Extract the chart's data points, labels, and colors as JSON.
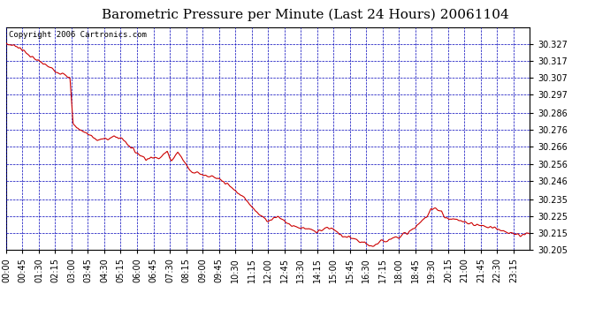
{
  "title": "Barometric Pressure per Minute (Last 24 Hours) 20061104",
  "copyright": "Copyright 2006 Cartronics.com",
  "background_color": "#ffffff",
  "plot_bg_color": "#ffffff",
  "line_color": "#cc0000",
  "grid_color": "#0000bb",
  "y_min": 30.205,
  "y_max": 30.337,
  "y_ticks": [
    30.205,
    30.215,
    30.225,
    30.235,
    30.246,
    30.256,
    30.266,
    30.276,
    30.286,
    30.297,
    30.307,
    30.317,
    30.327
  ],
  "x_tick_labels": [
    "00:00",
    "00:45",
    "01:30",
    "02:15",
    "03:00",
    "03:45",
    "04:30",
    "05:15",
    "06:00",
    "06:45",
    "07:30",
    "08:15",
    "09:00",
    "09:45",
    "10:30",
    "11:15",
    "12:00",
    "12:45",
    "13:30",
    "14:15",
    "15:00",
    "15:45",
    "16:30",
    "17:15",
    "18:00",
    "18:45",
    "19:30",
    "20:15",
    "21:00",
    "21:45",
    "22:30",
    "23:15"
  ],
  "title_fontsize": 11,
  "tick_fontsize": 7,
  "copyright_fontsize": 6.5,
  "key_times": [
    0,
    0.02,
    0.055,
    0.09,
    0.122,
    0.128,
    0.133,
    0.175,
    0.208,
    0.222,
    0.248,
    0.268,
    0.292,
    0.308,
    0.316,
    0.328,
    0.352,
    0.395,
    0.418,
    0.458,
    0.478,
    0.498,
    0.518,
    0.542,
    0.562,
    0.578,
    0.592,
    0.608,
    0.622,
    0.642,
    0.658,
    0.698,
    0.718,
    0.768,
    0.792,
    0.808,
    0.812,
    0.832,
    0.838,
    0.868,
    0.898,
    0.932,
    0.968,
    0.982,
    1.0
  ],
  "key_vals": [
    30.327,
    30.326,
    30.318,
    30.312,
    30.307,
    30.28,
    30.278,
    30.27,
    30.272,
    30.271,
    30.263,
    30.259,
    30.26,
    30.263,
    30.258,
    30.263,
    30.252,
    30.248,
    30.245,
    30.235,
    30.228,
    30.222,
    30.225,
    30.22,
    30.218,
    30.218,
    30.215,
    30.218,
    30.218,
    30.213,
    30.212,
    30.207,
    30.21,
    30.215,
    30.221,
    30.227,
    30.23,
    30.228,
    30.224,
    30.222,
    30.22,
    30.218,
    30.215,
    30.213,
    30.215
  ]
}
